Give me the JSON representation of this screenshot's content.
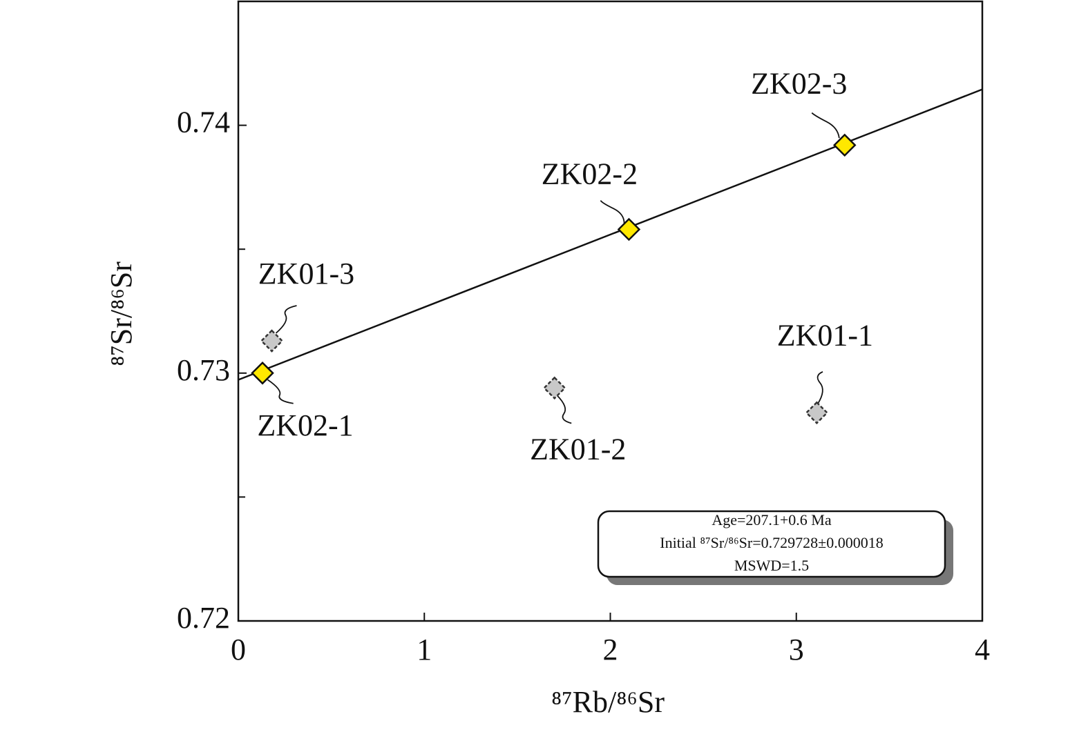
{
  "chart_data": {
    "type": "scatter",
    "x_label": "⁸⁷Rb/⁸⁶Sr",
    "y_label": "⁸⁷Sr/⁸⁶Sr",
    "xlim": [
      0,
      4
    ],
    "xticks": [
      0,
      1,
      2,
      3,
      4
    ],
    "ylim": [
      0.72,
      0.745
    ],
    "yticks": [
      0.72,
      0.73,
      0.74
    ],
    "yminorticks": [
      0.725,
      0.735
    ],
    "series": [
      {
        "color": "#ffe800",
        "dashed": false,
        "labels": [
          "ZK02-1",
          "ZK02-2",
          "ZK02-3"
        ],
        "x": [
          0.13,
          2.1,
          3.26
        ],
        "values": [
          0.73,
          0.7358,
          0.7392
        ]
      },
      {
        "color": "#c8c8c8",
        "dashed": true,
        "labels": [
          "ZK01-3",
          "ZK01-2",
          "ZK01-1"
        ],
        "x": [
          0.18,
          1.7,
          3.11
        ],
        "values": [
          0.7313,
          0.7294,
          0.7284
        ]
      }
    ],
    "fit_line": {
      "x": [
        0,
        4
      ],
      "y": [
        0.72973,
        0.74145
      ]
    },
    "annotation": [
      "Age=207.1+0.6 Ma",
      "Initial ⁸⁷Sr/⁸⁶Sr=0.729728±0.000018",
      "MSWD=1.5"
    ]
  }
}
